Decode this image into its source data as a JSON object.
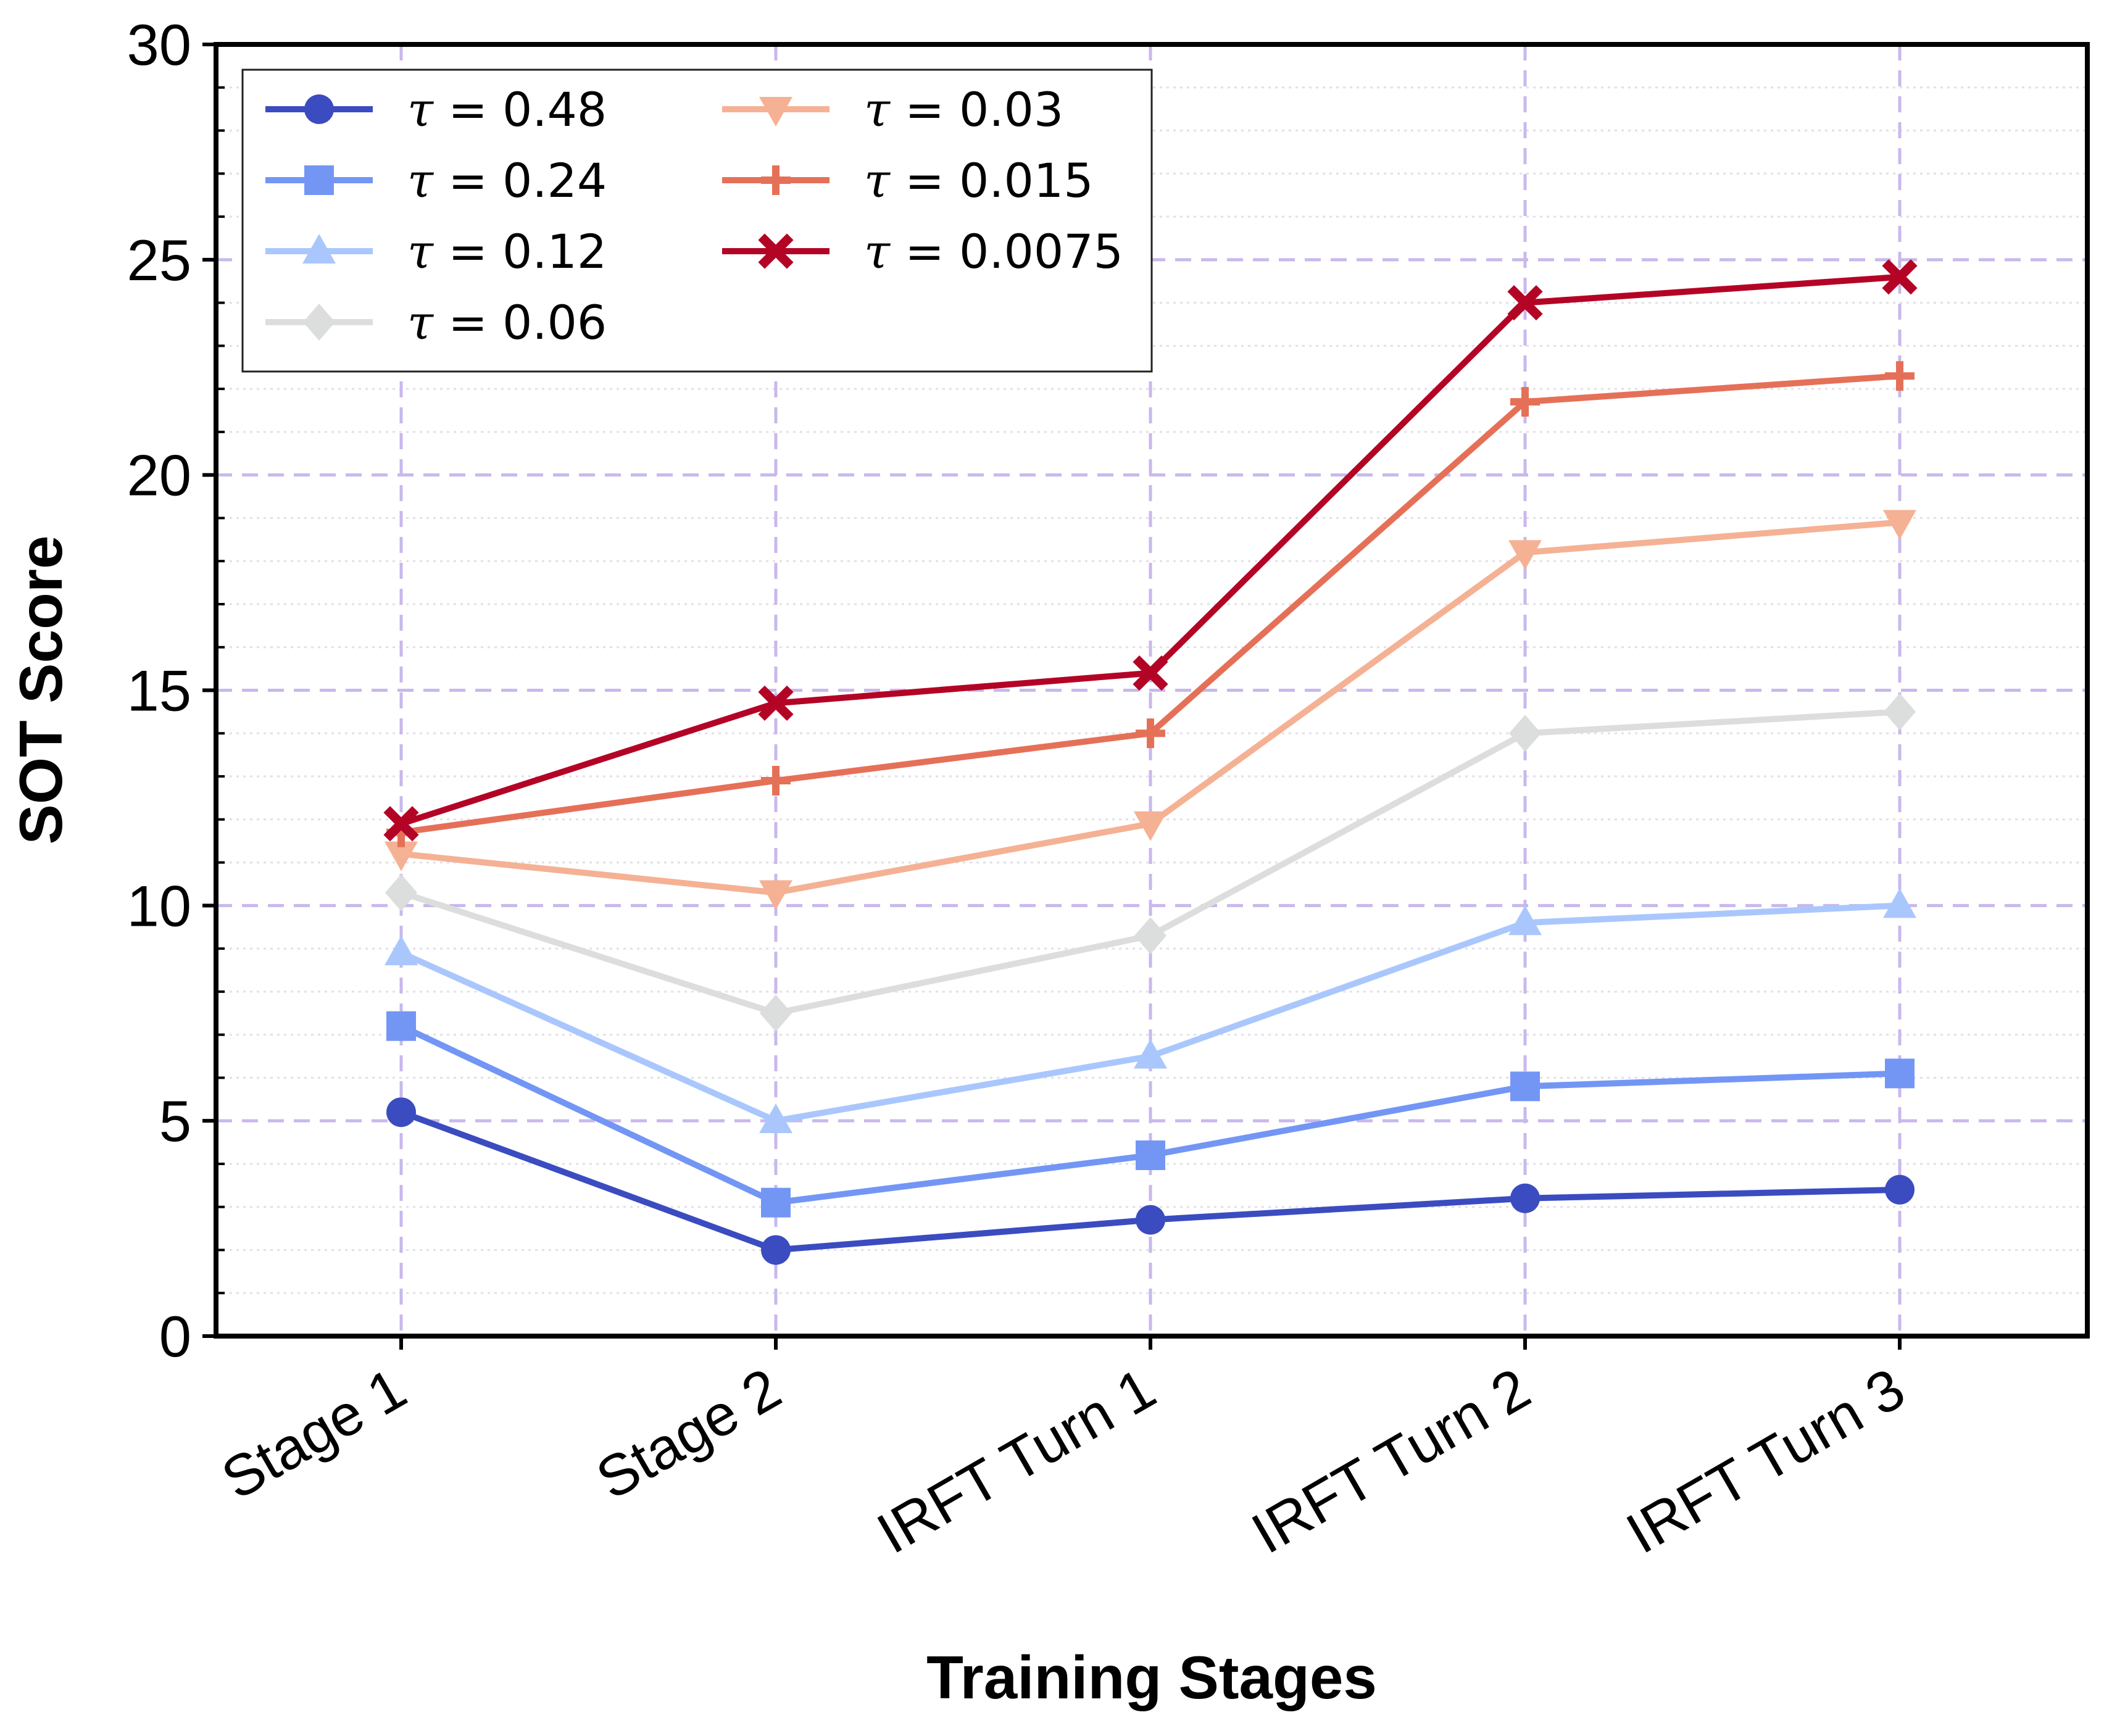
{
  "chart_data": {
    "type": "line",
    "xlabel": "Training Stages",
    "ylabel": "SOT Score",
    "ylim": [
      0,
      30
    ],
    "yticks": [
      0,
      5,
      10,
      15,
      20,
      25,
      30
    ],
    "categories": [
      "Stage 1",
      "Stage 2",
      "IRFT Turn 1",
      "IRFT Turn 2",
      "IRFT Turn 3"
    ],
    "grid": true,
    "legend_position": "top-left",
    "series": [
      {
        "name": "τ = 0.48",
        "marker": "circle",
        "color": "#3b4cc0",
        "values": [
          5.2,
          2.0,
          2.7,
          3.2,
          3.4
        ]
      },
      {
        "name": "τ = 0.24",
        "marker": "square",
        "color": "#7396f5",
        "values": [
          7.2,
          3.1,
          4.2,
          5.8,
          6.1
        ]
      },
      {
        "name": "τ = 0.12",
        "marker": "triangle-up",
        "color": "#aac7fd",
        "values": [
          8.9,
          5.0,
          6.5,
          9.6,
          10.0
        ]
      },
      {
        "name": "τ = 0.06",
        "marker": "diamond",
        "color": "#dcdddd",
        "values": [
          10.3,
          7.5,
          9.3,
          14.0,
          14.5
        ]
      },
      {
        "name": "τ = 0.03",
        "marker": "triangle-down",
        "color": "#f5b194",
        "values": [
          11.2,
          10.3,
          11.9,
          18.2,
          18.9
        ]
      },
      {
        "name": "τ = 0.015",
        "marker": "plus",
        "color": "#e57058",
        "values": [
          11.7,
          12.9,
          14.0,
          21.7,
          22.3
        ]
      },
      {
        "name": "τ = 0.0075",
        "marker": "x",
        "color": "#b40426",
        "values": [
          11.9,
          14.7,
          15.4,
          24.0,
          24.6
        ]
      }
    ]
  }
}
